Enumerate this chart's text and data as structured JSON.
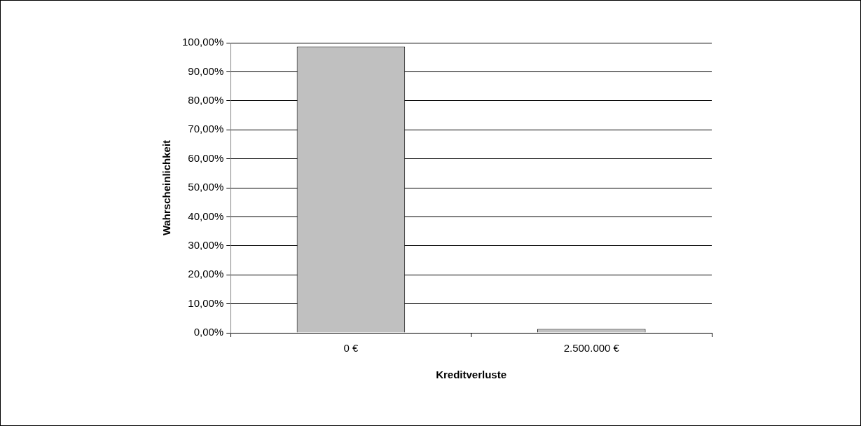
{
  "chart_data": {
    "type": "bar",
    "xlabel": "Kreditverluste",
    "ylabel": "Wahrscheinlichkeit",
    "categories": [
      "0 €",
      "2.500.000 €"
    ],
    "series": [
      {
        "color": "#c0c0c0",
        "values": [
          98.7,
          1.3
        ]
      }
    ],
    "ylim": [
      0,
      100
    ],
    "yticks": [
      {
        "value": 0,
        "label": "0,00%"
      },
      {
        "value": 10,
        "label": "10,00%"
      },
      {
        "value": 20,
        "label": "20,00%"
      },
      {
        "value": 30,
        "label": "30,00%"
      },
      {
        "value": 40,
        "label": "40,00%"
      },
      {
        "value": 50,
        "label": "50,00%"
      },
      {
        "value": 60,
        "label": "60,00%"
      },
      {
        "value": 70,
        "label": "70,00%"
      },
      {
        "value": 80,
        "label": "80,00%"
      },
      {
        "value": 90,
        "label": "90,00%"
      },
      {
        "value": 100,
        "label": "100,00%"
      }
    ],
    "grid": "y",
    "legend": false
  }
}
